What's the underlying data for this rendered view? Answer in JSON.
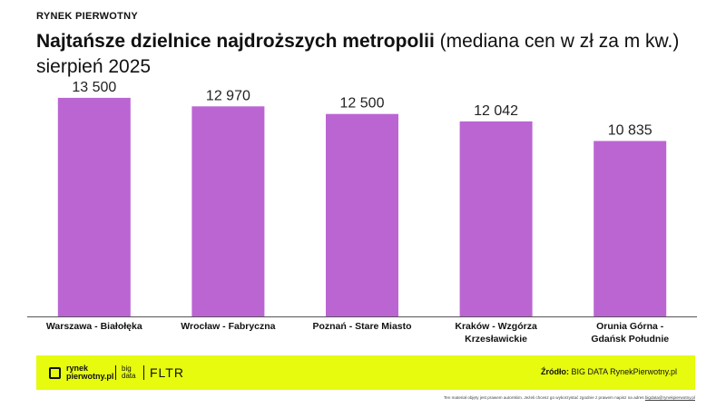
{
  "header": {
    "brand": "RYNEK PIERWOTNY",
    "title_bold": "Najtańsze dzielnice najdroższych metropolii",
    "title_normal": " (mediana cen w zł za m kw.)",
    "title_line2": "sierpień 2025"
  },
  "chart_data": {
    "type": "bar",
    "categories": [
      [
        "Warszawa - Białołęka"
      ],
      [
        "Wrocław - Fabryczna"
      ],
      [
        "Poznań - Stare Miasto"
      ],
      [
        "Kraków - Wzgórza",
        "Krzesławickie"
      ],
      [
        "Orunia Górna -",
        "Gdańsk Południe"
      ]
    ],
    "values": [
      13500,
      12970,
      12500,
      12042,
      10835
    ],
    "value_labels": [
      "13 500",
      "12 970",
      "12 500",
      "12 042",
      "10 835"
    ],
    "ylim": [
      0,
      14500
    ],
    "bar_color": "#bb65d3",
    "grid": false
  },
  "footer": {
    "logo_rynek": "rynek pierwotny.pl",
    "logo_bigdata": "big data",
    "logo_fltr": "FLTR",
    "source_label": "Źródło:",
    "source_value": " BIG DATA RynekPierwotny.pl",
    "background": "#e6fb0e"
  },
  "disclaimer": {
    "text": "Ten materiał objęty jest prawem autorskim. Jeżeli chcesz go wykorzystać zgodnie z prawem napisz na adres ",
    "link": "bigdata@rynekpierwotny.pl"
  }
}
